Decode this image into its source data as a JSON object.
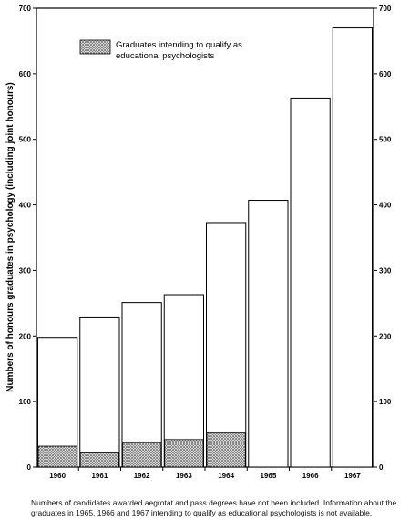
{
  "chart_data": {
    "type": "bar",
    "categories": [
      "1960",
      "1961",
      "1962",
      "1963",
      "1964",
      "1965",
      "1966",
      "1967"
    ],
    "series": [
      {
        "values": [
          198,
          229,
          251,
          263,
          373,
          407,
          563,
          670
        ]
      },
      {
        "name": "Graduates intending to qualify as educational psychologists",
        "values": [
          32,
          23,
          38,
          42,
          52,
          null,
          null,
          null
        ]
      }
    ],
    "ylabel": "Numbers of honours graduates in psychology (including  joint honours)",
    "xlabel": "",
    "ylim": [
      0,
      700
    ],
    "yticks": [
      "0",
      "100",
      "200",
      "300",
      "400",
      "500",
      "600",
      "700"
    ],
    "right_yticks": [
      "0",
      "100",
      "200",
      "300",
      "400",
      "500",
      "600",
      "700"
    ],
    "legend_label_lines": [
      "Graduates intending to qualify as",
      "educational psychologists"
    ],
    "legend_position": "top-left",
    "grid": false,
    "footnote": "Numbers of candidates awarded aegrotat and pass degrees have not been included. Information about the graduates in 1965, 1966 and 1967 intending to qualify as educational psychologists is not available."
  }
}
